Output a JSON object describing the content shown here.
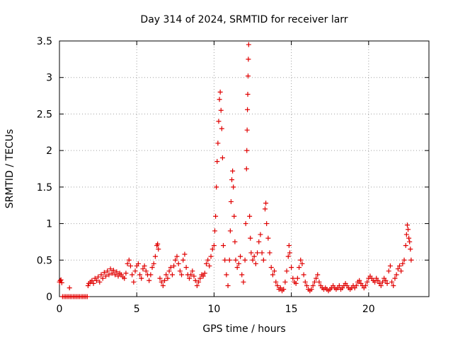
{
  "chart_data": {
    "type": "scatter",
    "title": "Day 314 of 2024, SRMTID for receiver larr",
    "xlabel": "GPS time / hours",
    "ylabel": "SRMTID / TECUs",
    "xlim": [
      0,
      23.9
    ],
    "ylim": [
      0,
      3.5
    ],
    "x_ticks": [
      0,
      5,
      10,
      15,
      20
    ],
    "x_tick_labels": [
      "0",
      "5",
      "10",
      "15",
      "20"
    ],
    "y_ticks": [
      0,
      0.5,
      1,
      1.5,
      2,
      2.5,
      3,
      3.5
    ],
    "y_tick_labels": [
      "0",
      "0.5",
      "1",
      "1.5",
      "2",
      "2.5",
      "3",
      "3.5"
    ],
    "grid": true,
    "marker": "+",
    "series": [
      {
        "name": "larr",
        "color": "#e00000",
        "points": [
          [
            0.0,
            0.2
          ],
          [
            0.05,
            0.22
          ],
          [
            0.1,
            0.23
          ],
          [
            0.15,
            0.19
          ],
          [
            0.2,
            0.0
          ],
          [
            0.3,
            0.0
          ],
          [
            0.4,
            0.0
          ],
          [
            0.5,
            0.0
          ],
          [
            0.6,
            0.0
          ],
          [
            0.65,
            0.12
          ],
          [
            0.7,
            0.0
          ],
          [
            0.8,
            0.0
          ],
          [
            0.9,
            0.0
          ],
          [
            1.0,
            0.0
          ],
          [
            1.1,
            0.0
          ],
          [
            1.2,
            0.0
          ],
          [
            1.3,
            0.0
          ],
          [
            1.4,
            0.0
          ],
          [
            1.5,
            0.0
          ],
          [
            1.6,
            0.0
          ],
          [
            1.7,
            0.0
          ],
          [
            1.8,
            0.0
          ],
          [
            1.85,
            0.15
          ],
          [
            1.9,
            0.18
          ],
          [
            2.0,
            0.2
          ],
          [
            2.1,
            0.22
          ],
          [
            2.2,
            0.18
          ],
          [
            2.3,
            0.25
          ],
          [
            2.4,
            0.22
          ],
          [
            2.5,
            0.27
          ],
          [
            2.6,
            0.2
          ],
          [
            2.7,
            0.3
          ],
          [
            2.8,
            0.25
          ],
          [
            2.9,
            0.33
          ],
          [
            3.0,
            0.28
          ],
          [
            3.1,
            0.35
          ],
          [
            3.2,
            0.3
          ],
          [
            3.3,
            0.38
          ],
          [
            3.4,
            0.32
          ],
          [
            3.5,
            0.36
          ],
          [
            3.6,
            0.3
          ],
          [
            3.7,
            0.34
          ],
          [
            3.8,
            0.28
          ],
          [
            3.9,
            0.32
          ],
          [
            4.0,
            0.3
          ],
          [
            4.1,
            0.27
          ],
          [
            4.2,
            0.25
          ],
          [
            4.3,
            0.32
          ],
          [
            4.4,
            0.45
          ],
          [
            4.5,
            0.5
          ],
          [
            4.6,
            0.42
          ],
          [
            4.7,
            0.3
          ],
          [
            4.8,
            0.2
          ],
          [
            4.9,
            0.35
          ],
          [
            5.0,
            0.42
          ],
          [
            5.1,
            0.45
          ],
          [
            5.2,
            0.3
          ],
          [
            5.3,
            0.25
          ],
          [
            5.4,
            0.38
          ],
          [
            5.5,
            0.42
          ],
          [
            5.6,
            0.35
          ],
          [
            5.7,
            0.3
          ],
          [
            5.8,
            0.22
          ],
          [
            5.9,
            0.3
          ],
          [
            6.0,
            0.4
          ],
          [
            6.1,
            0.45
          ],
          [
            6.2,
            0.55
          ],
          [
            6.3,
            0.7
          ],
          [
            6.35,
            0.72
          ],
          [
            6.4,
            0.65
          ],
          [
            6.5,
            0.25
          ],
          [
            6.6,
            0.2
          ],
          [
            6.7,
            0.15
          ],
          [
            6.8,
            0.22
          ],
          [
            6.9,
            0.3
          ],
          [
            7.0,
            0.25
          ],
          [
            7.1,
            0.35
          ],
          [
            7.2,
            0.4
          ],
          [
            7.3,
            0.3
          ],
          [
            7.4,
            0.42
          ],
          [
            7.5,
            0.5
          ],
          [
            7.6,
            0.55
          ],
          [
            7.7,
            0.45
          ],
          [
            7.8,
            0.35
          ],
          [
            7.9,
            0.3
          ],
          [
            8.0,
            0.5
          ],
          [
            8.1,
            0.58
          ],
          [
            8.2,
            0.4
          ],
          [
            8.3,
            0.3
          ],
          [
            8.4,
            0.25
          ],
          [
            8.5,
            0.3
          ],
          [
            8.6,
            0.35
          ],
          [
            8.7,
            0.28
          ],
          [
            8.8,
            0.22
          ],
          [
            8.9,
            0.15
          ],
          [
            9.0,
            0.2
          ],
          [
            9.1,
            0.25
          ],
          [
            9.2,
            0.3
          ],
          [
            9.3,
            0.28
          ],
          [
            9.4,
            0.32
          ],
          [
            9.5,
            0.45
          ],
          [
            9.6,
            0.5
          ],
          [
            9.7,
            0.42
          ],
          [
            9.8,
            0.55
          ],
          [
            9.9,
            0.65
          ],
          [
            10.0,
            0.7
          ],
          [
            10.05,
            0.9
          ],
          [
            10.1,
            1.1
          ],
          [
            10.15,
            1.5
          ],
          [
            10.2,
            1.85
          ],
          [
            10.25,
            2.1
          ],
          [
            10.3,
            2.4
          ],
          [
            10.35,
            2.7
          ],
          [
            10.4,
            2.8
          ],
          [
            10.45,
            2.55
          ],
          [
            10.5,
            2.3
          ],
          [
            10.55,
            1.9
          ],
          [
            10.6,
            0.7
          ],
          [
            10.7,
            0.5
          ],
          [
            10.8,
            0.3
          ],
          [
            10.9,
            0.15
          ],
          [
            11.0,
            0.5
          ],
          [
            11.05,
            0.9
          ],
          [
            11.1,
            1.3
          ],
          [
            11.15,
            1.6
          ],
          [
            11.2,
            1.72
          ],
          [
            11.25,
            1.5
          ],
          [
            11.3,
            1.1
          ],
          [
            11.35,
            0.75
          ],
          [
            11.4,
            0.5
          ],
          [
            11.5,
            0.4
          ],
          [
            11.6,
            0.45
          ],
          [
            11.7,
            0.55
          ],
          [
            11.8,
            0.3
          ],
          [
            11.9,
            0.2
          ],
          [
            12.0,
            0.5
          ],
          [
            12.05,
            1.0
          ],
          [
            12.1,
            1.75
          ],
          [
            12.12,
            2.0
          ],
          [
            12.14,
            2.28
          ],
          [
            12.16,
            2.56
          ],
          [
            12.18,
            2.77
          ],
          [
            12.2,
            3.02
          ],
          [
            12.22,
            3.25
          ],
          [
            12.24,
            3.45
          ],
          [
            12.3,
            1.1
          ],
          [
            12.35,
            0.8
          ],
          [
            12.4,
            0.6
          ],
          [
            12.5,
            0.5
          ],
          [
            12.6,
            0.55
          ],
          [
            12.7,
            0.45
          ],
          [
            12.8,
            0.6
          ],
          [
            12.9,
            0.75
          ],
          [
            13.0,
            0.85
          ],
          [
            13.1,
            0.6
          ],
          [
            13.2,
            0.5
          ],
          [
            13.3,
            1.2
          ],
          [
            13.35,
            1.28
          ],
          [
            13.4,
            1.0
          ],
          [
            13.5,
            0.8
          ],
          [
            13.6,
            0.6
          ],
          [
            13.7,
            0.4
          ],
          [
            13.8,
            0.3
          ],
          [
            13.9,
            0.35
          ],
          [
            14.0,
            0.2
          ],
          [
            14.1,
            0.15
          ],
          [
            14.2,
            0.1
          ],
          [
            14.3,
            0.12
          ],
          [
            14.4,
            0.08
          ],
          [
            14.5,
            0.1
          ],
          [
            14.6,
            0.2
          ],
          [
            14.7,
            0.35
          ],
          [
            14.8,
            0.55
          ],
          [
            14.85,
            0.7
          ],
          [
            14.9,
            0.6
          ],
          [
            15.0,
            0.4
          ],
          [
            15.1,
            0.25
          ],
          [
            15.2,
            0.2
          ],
          [
            15.3,
            0.18
          ],
          [
            15.4,
            0.25
          ],
          [
            15.5,
            0.4
          ],
          [
            15.6,
            0.5
          ],
          [
            15.7,
            0.45
          ],
          [
            15.8,
            0.3
          ],
          [
            15.9,
            0.2
          ],
          [
            16.0,
            0.15
          ],
          [
            16.1,
            0.1
          ],
          [
            16.2,
            0.08
          ],
          [
            16.3,
            0.1
          ],
          [
            16.4,
            0.15
          ],
          [
            16.5,
            0.2
          ],
          [
            16.6,
            0.25
          ],
          [
            16.7,
            0.3
          ],
          [
            16.8,
            0.2
          ],
          [
            16.9,
            0.15
          ],
          [
            17.0,
            0.12
          ],
          [
            17.1,
            0.1
          ],
          [
            17.2,
            0.12
          ],
          [
            17.3,
            0.1
          ],
          [
            17.4,
            0.08
          ],
          [
            17.5,
            0.1
          ],
          [
            17.6,
            0.12
          ],
          [
            17.7,
            0.15
          ],
          [
            17.8,
            0.12
          ],
          [
            17.9,
            0.1
          ],
          [
            18.0,
            0.12
          ],
          [
            18.1,
            0.15
          ],
          [
            18.2,
            0.1
          ],
          [
            18.3,
            0.12
          ],
          [
            18.4,
            0.15
          ],
          [
            18.5,
            0.18
          ],
          [
            18.6,
            0.15
          ],
          [
            18.7,
            0.12
          ],
          [
            18.8,
            0.1
          ],
          [
            18.9,
            0.12
          ],
          [
            19.0,
            0.15
          ],
          [
            19.1,
            0.12
          ],
          [
            19.2,
            0.15
          ],
          [
            19.3,
            0.2
          ],
          [
            19.4,
            0.22
          ],
          [
            19.5,
            0.18
          ],
          [
            19.6,
            0.15
          ],
          [
            19.7,
            0.12
          ],
          [
            19.8,
            0.15
          ],
          [
            19.9,
            0.2
          ],
          [
            20.0,
            0.25
          ],
          [
            20.1,
            0.28
          ],
          [
            20.2,
            0.25
          ],
          [
            20.3,
            0.22
          ],
          [
            20.4,
            0.2
          ],
          [
            20.5,
            0.25
          ],
          [
            20.6,
            0.22
          ],
          [
            20.7,
            0.18
          ],
          [
            20.8,
            0.15
          ],
          [
            20.9,
            0.2
          ],
          [
            21.0,
            0.25
          ],
          [
            21.1,
            0.22
          ],
          [
            21.2,
            0.18
          ],
          [
            21.3,
            0.35
          ],
          [
            21.4,
            0.42
          ],
          [
            21.5,
            0.2
          ],
          [
            21.6,
            0.15
          ],
          [
            21.7,
            0.25
          ],
          [
            21.8,
            0.3
          ],
          [
            21.9,
            0.38
          ],
          [
            22.0,
            0.42
          ],
          [
            22.1,
            0.35
          ],
          [
            22.2,
            0.45
          ],
          [
            22.3,
            0.5
          ],
          [
            22.4,
            0.7
          ],
          [
            22.45,
            0.85
          ],
          [
            22.5,
            0.98
          ],
          [
            22.55,
            0.92
          ],
          [
            22.6,
            0.8
          ],
          [
            22.65,
            0.75
          ],
          [
            22.7,
            0.65
          ],
          [
            22.75,
            0.5
          ]
        ]
      }
    ]
  }
}
